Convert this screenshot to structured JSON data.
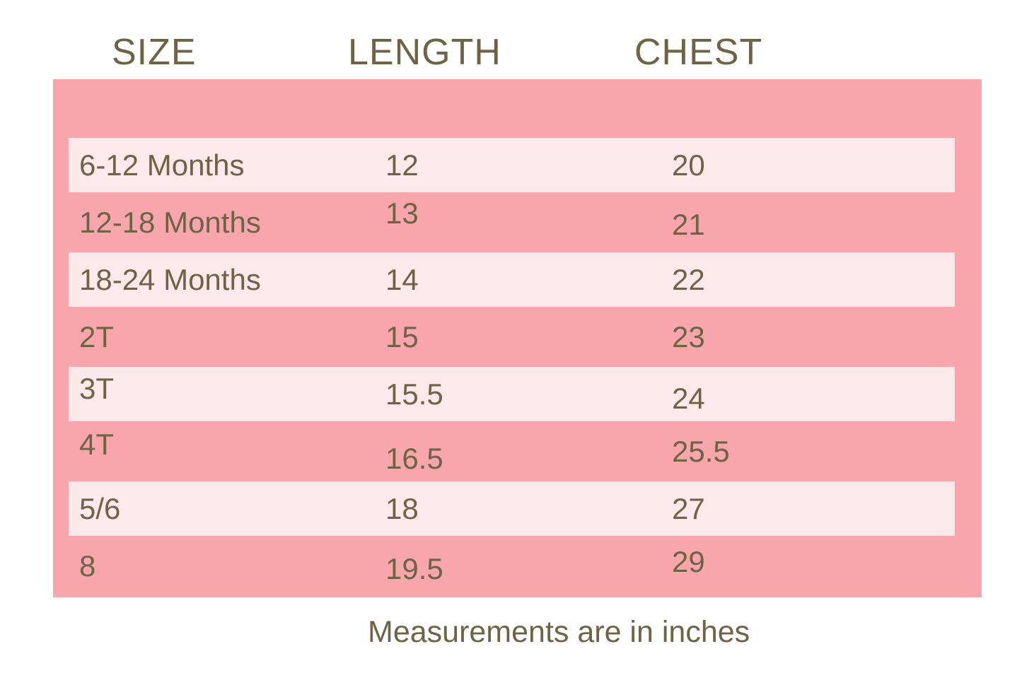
{
  "chart_data": {
    "type": "table",
    "columns": [
      "SIZE",
      "LENGTH",
      "CHEST"
    ],
    "rows": [
      [
        "6-12 Months",
        "12",
        "20"
      ],
      [
        "12-18 Months",
        "13",
        "21"
      ],
      [
        "18-24 Months",
        "14",
        "22"
      ],
      [
        "2T",
        "15",
        "23"
      ],
      [
        "3T",
        "15.5",
        "24"
      ],
      [
        "4T",
        "16.5",
        "25.5"
      ],
      [
        "5/6",
        "18",
        "27"
      ],
      [
        "8",
        "19.5",
        "29"
      ]
    ],
    "note": "Measurements are in inches"
  },
  "colors": {
    "panel_pink": "#f8a6ab",
    "stripe_light_pink": "#fce9eb",
    "text_olive": "#6e6345",
    "page_background": "#ffffff"
  }
}
